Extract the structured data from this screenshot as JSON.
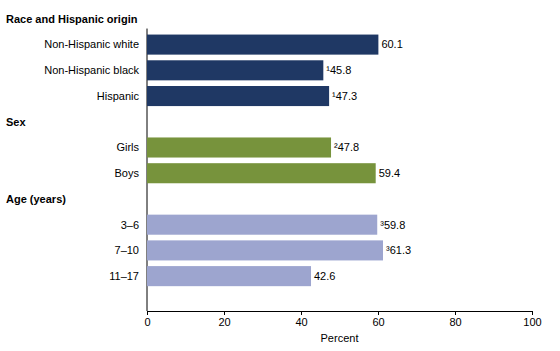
{
  "chart_data": {
    "type": "bar",
    "orientation": "horizontal",
    "data_labels": true,
    "grid": false,
    "categories": [
      "Race and Hispanic origin",
      "Non-Hispanic white",
      "Non-Hispanic black",
      "Hispanic",
      "Sex",
      "Girls",
      "Boys",
      "Age (years)",
      "3–6",
      "7–10",
      "11–17"
    ],
    "values": [
      null,
      60.1,
      45.8,
      47.3,
      null,
      47.8,
      59.4,
      null,
      59.8,
      61.3,
      42.6
    ],
    "value_labels": [
      null,
      "60.1",
      "¹45.8",
      "¹47.3",
      null,
      "²47.8",
      "59.4",
      null,
      "³59.8",
      "³61.3",
      "42.6"
    ],
    "colors": [
      null,
      "#1f3864",
      "#1f3864",
      "#1f3864",
      null,
      "#77933c",
      "#77933c",
      null,
      "#9da5cf",
      "#9da5cf",
      "#9da5cf"
    ],
    "x_label": "Percent",
    "xlim": [
      0,
      100
    ],
    "xticks": [
      0,
      20,
      40,
      60,
      80,
      100
    ]
  }
}
